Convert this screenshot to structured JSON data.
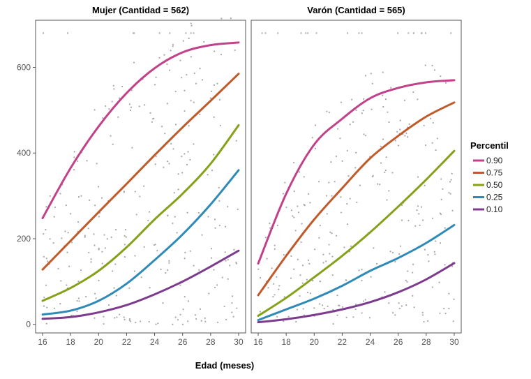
{
  "chart_data": {
    "type": "scatter",
    "xlabel": "Edad (meses)",
    "ylabel": "",
    "xlim": [
      15.5,
      30.5
    ],
    "ylim": [
      -20,
      710
    ],
    "x_ticks": [
      "16",
      "18",
      "20",
      "22",
      "24",
      "26",
      "28",
      "30"
    ],
    "y_ticks": [
      "0",
      "200",
      "400",
      "600"
    ],
    "grid": false,
    "legend": {
      "title": "Percentil",
      "placement": "right",
      "entries": [
        "0.90",
        "0.75",
        "0.50",
        "0.25",
        "0.10"
      ]
    },
    "series_colors": {
      "0.90": "#c2428a",
      "0.75": "#c05a2a",
      "0.50": "#84a119",
      "0.25": "#2f8ab8",
      "0.10": "#7c3b8c"
    },
    "point_color": "#a6a6a6",
    "panels": [
      {
        "title": "Mujer (Cantidad = 562)",
        "series": [
          {
            "name": "0.90",
            "x": [
              16,
              18,
              20,
              22,
              24,
              26,
              28,
              30
            ],
            "y": [
              248,
              365,
              462,
              540,
              598,
              635,
              652,
              658
            ]
          },
          {
            "name": "0.75",
            "x": [
              16,
              18,
              20,
              22,
              24,
              26,
              28,
              30
            ],
            "y": [
              128,
              195,
              262,
              328,
              395,
              460,
              522,
              585
            ]
          },
          {
            "name": "0.50",
            "x": [
              16,
              18,
              20,
              22,
              24,
              26,
              28,
              30
            ],
            "y": [
              55,
              85,
              125,
              180,
              245,
              305,
              375,
              465
            ]
          },
          {
            "name": "0.25",
            "x": [
              16,
              18,
              20,
              22,
              24,
              26,
              28,
              30
            ],
            "y": [
              23,
              32,
              55,
              95,
              150,
              210,
              280,
              360
            ]
          },
          {
            "name": "0.10",
            "x": [
              16,
              18,
              20,
              22,
              24,
              26,
              28,
              30
            ],
            "y": [
              13,
              17,
              28,
              45,
              70,
              100,
              135,
              172
            ]
          }
        ]
      },
      {
        "title": "Varón (Cantidad = 565)",
        "series": [
          {
            "name": "0.90",
            "x": [
              16,
              18,
              20,
              22,
              24,
              26,
              28,
              30
            ],
            "y": [
              142,
              305,
              420,
              480,
              528,
              552,
              565,
              570
            ]
          },
          {
            "name": "0.75",
            "x": [
              16,
              18,
              20,
              22,
              24,
              26,
              28,
              30
            ],
            "y": [
              68,
              160,
              245,
              318,
              388,
              440,
              485,
              518
            ]
          },
          {
            "name": "0.50",
            "x": [
              16,
              18,
              20,
              22,
              24,
              26,
              28,
              30
            ],
            "y": [
              20,
              62,
              110,
              160,
              215,
              275,
              338,
              405
            ]
          },
          {
            "name": "0.25",
            "x": [
              16,
              18,
              20,
              22,
              24,
              26,
              28,
              30
            ],
            "y": [
              10,
              35,
              60,
              90,
              125,
              155,
              190,
              232
            ]
          },
          {
            "name": "0.10",
            "x": [
              16,
              18,
              20,
              22,
              24,
              26,
              28,
              30
            ],
            "y": [
              5,
              12,
              22,
              35,
              52,
              75,
              105,
              143
            ]
          }
        ]
      }
    ]
  }
}
